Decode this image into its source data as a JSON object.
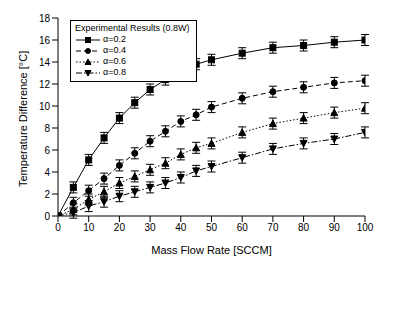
{
  "chart_data": {
    "type": "line",
    "x_label": "Mass Flow Rate [SCCM]",
    "y_label": "Temperature Difference [°C]",
    "legend_title": "Experimental Results (0.8W)",
    "legend": "upper left",
    "grid": false,
    "x": [
      0,
      5,
      10,
      15,
      20,
      25,
      30,
      35,
      40,
      45,
      50,
      60,
      70,
      80,
      90,
      100
    ],
    "xlim": [
      0,
      100
    ],
    "xticks": [
      0,
      10,
      20,
      30,
      40,
      50,
      60,
      70,
      80,
      90,
      100
    ],
    "ylim": [
      0,
      18
    ],
    "yticks": [
      0,
      2,
      4,
      6,
      8,
      10,
      12,
      14,
      16,
      18
    ],
    "series": [
      {
        "name": "α=0.2",
        "color": "#000000",
        "marker": "square",
        "line_style": "solid",
        "values": [
          0,
          2.6,
          5.1,
          7.1,
          8.9,
          10.3,
          11.5,
          12.4,
          13.2,
          13.8,
          14.2,
          14.8,
          15.3,
          15.5,
          15.8,
          16.0
        ],
        "errors": [
          0,
          0.5,
          0.5,
          0.5,
          0.5,
          0.5,
          0.5,
          0.5,
          0.5,
          0.5,
          0.5,
          0.5,
          0.5,
          0.5,
          0.5,
          0.5
        ]
      },
      {
        "name": "α=0.4",
        "color": "#000000",
        "marker": "circle",
        "line_style": "dashed",
        "values": [
          0,
          1.2,
          2.3,
          3.4,
          4.6,
          5.7,
          6.8,
          7.7,
          8.6,
          9.2,
          9.9,
          10.7,
          11.3,
          11.7,
          12.1,
          12.3
        ],
        "errors": [
          0,
          0.5,
          0.5,
          0.5,
          0.5,
          0.5,
          0.5,
          0.5,
          0.5,
          0.5,
          0.5,
          0.5,
          0.5,
          0.5,
          0.5,
          0.5
        ]
      },
      {
        "name": "α=0.6",
        "color": "#000000",
        "marker": "triangle-up",
        "line_style": "dotted",
        "values": [
          0,
          0.6,
          1.5,
          2.2,
          3.0,
          3.6,
          4.2,
          4.8,
          5.6,
          6.2,
          6.6,
          7.6,
          8.4,
          8.9,
          9.4,
          9.8
        ],
        "errors": [
          0,
          0.5,
          0.5,
          0.5,
          0.5,
          0.5,
          0.5,
          0.5,
          0.5,
          0.5,
          0.5,
          0.5,
          0.5,
          0.5,
          0.5,
          0.5
        ]
      },
      {
        "name": "α=0.8",
        "color": "#000000",
        "marker": "triangle-down",
        "line_style": "dashdot",
        "values": [
          0,
          0.3,
          0.9,
          1.3,
          1.8,
          2.2,
          2.6,
          3.0,
          3.5,
          4.1,
          4.5,
          5.3,
          6.1,
          6.6,
          7.0,
          7.6
        ],
        "errors": [
          0,
          0.5,
          0.5,
          0.5,
          0.5,
          0.5,
          0.5,
          0.5,
          0.5,
          0.5,
          0.5,
          0.5,
          0.5,
          0.5,
          0.5,
          0.5
        ]
      }
    ]
  }
}
